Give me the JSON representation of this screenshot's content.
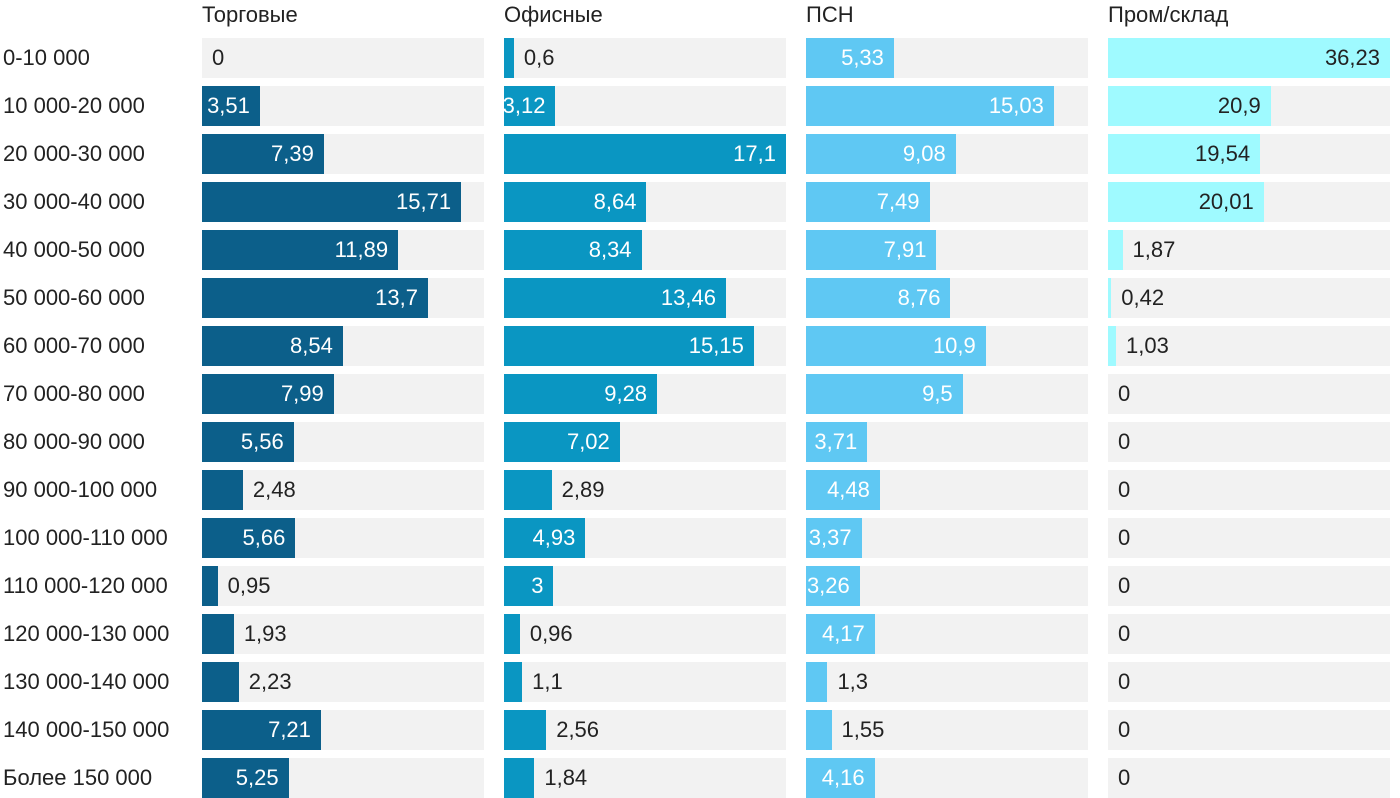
{
  "chart_data": {
    "type": "bar",
    "orientation": "horizontal",
    "layout": "small-multiples",
    "categories": [
      "0-10 000",
      "10 000-20 000",
      "20 000-30 000",
      "30 000-40 000",
      "40 000-50 000",
      "50 000-60 000",
      "60 000-70 000",
      "70 000-80 000",
      "80 000-90 000",
      "90 000-100 000",
      "100 000-110 000",
      "110 000-120 000",
      "120 000-130 000",
      "130 000-140 000",
      "140 000-150 000",
      "Более 150 000"
    ],
    "xlim": [
      0,
      17.1
    ],
    "grid": false,
    "series": [
      {
        "name": "Торговые",
        "color": "#0c5f8a",
        "values": [
          0,
          3.51,
          7.39,
          15.71,
          11.89,
          13.7,
          8.54,
          7.99,
          5.56,
          2.48,
          5.66,
          0.95,
          1.93,
          2.23,
          7.21,
          5.25
        ],
        "labels": [
          "0",
          "3,51",
          "7,39",
          "15,71",
          "11,89",
          "13,7",
          "8,54",
          "7,99",
          "5,56",
          "2,48",
          "5,66",
          "0,95",
          "1,93",
          "2,23",
          "7,21",
          "5,25"
        ]
      },
      {
        "name": "Офисные",
        "color": "#0a96c2",
        "values": [
          0.6,
          3.12,
          17.1,
          8.64,
          8.34,
          13.46,
          15.15,
          9.28,
          7.02,
          2.89,
          4.93,
          3,
          0.96,
          1.1,
          2.56,
          1.84
        ],
        "labels": [
          "0,6",
          "3,12",
          "17,1",
          "8,64",
          "8,34",
          "13,46",
          "15,15",
          "9,28",
          "7,02",
          "2,89",
          "4,93",
          "3",
          "0,96",
          "1,1",
          "2,56",
          "1,84"
        ]
      },
      {
        "name": "ПСН",
        "color": "#5fc8f3",
        "values": [
          5.33,
          15.03,
          9.08,
          7.49,
          7.91,
          8.76,
          10.9,
          9.5,
          3.71,
          4.48,
          3.37,
          3.26,
          4.17,
          1.3,
          1.55,
          4.16
        ],
        "labels": [
          "5,33",
          "15,03",
          "9,08",
          "7,49",
          "7,91",
          "8,76",
          "10,9",
          "9,5",
          "3,71",
          "4,48",
          "3,37",
          "3,26",
          "4,17",
          "1,3",
          "1,55",
          "4,16"
        ]
      },
      {
        "name": "Пром/склад",
        "color": "#9ffaff",
        "values": [
          36.23,
          20.9,
          19.54,
          20.01,
          1.87,
          0.42,
          1.03,
          0,
          0,
          0,
          0,
          0,
          0,
          0,
          0,
          0
        ],
        "labels": [
          "36,23",
          "20,9",
          "19,54",
          "20,01",
          "1,87",
          "0,42",
          "1,03",
          "0",
          "0",
          "0",
          "0",
          "0",
          "0",
          "0",
          "0",
          "0"
        ],
        "xlim": [
          0,
          36.23
        ]
      }
    ]
  }
}
